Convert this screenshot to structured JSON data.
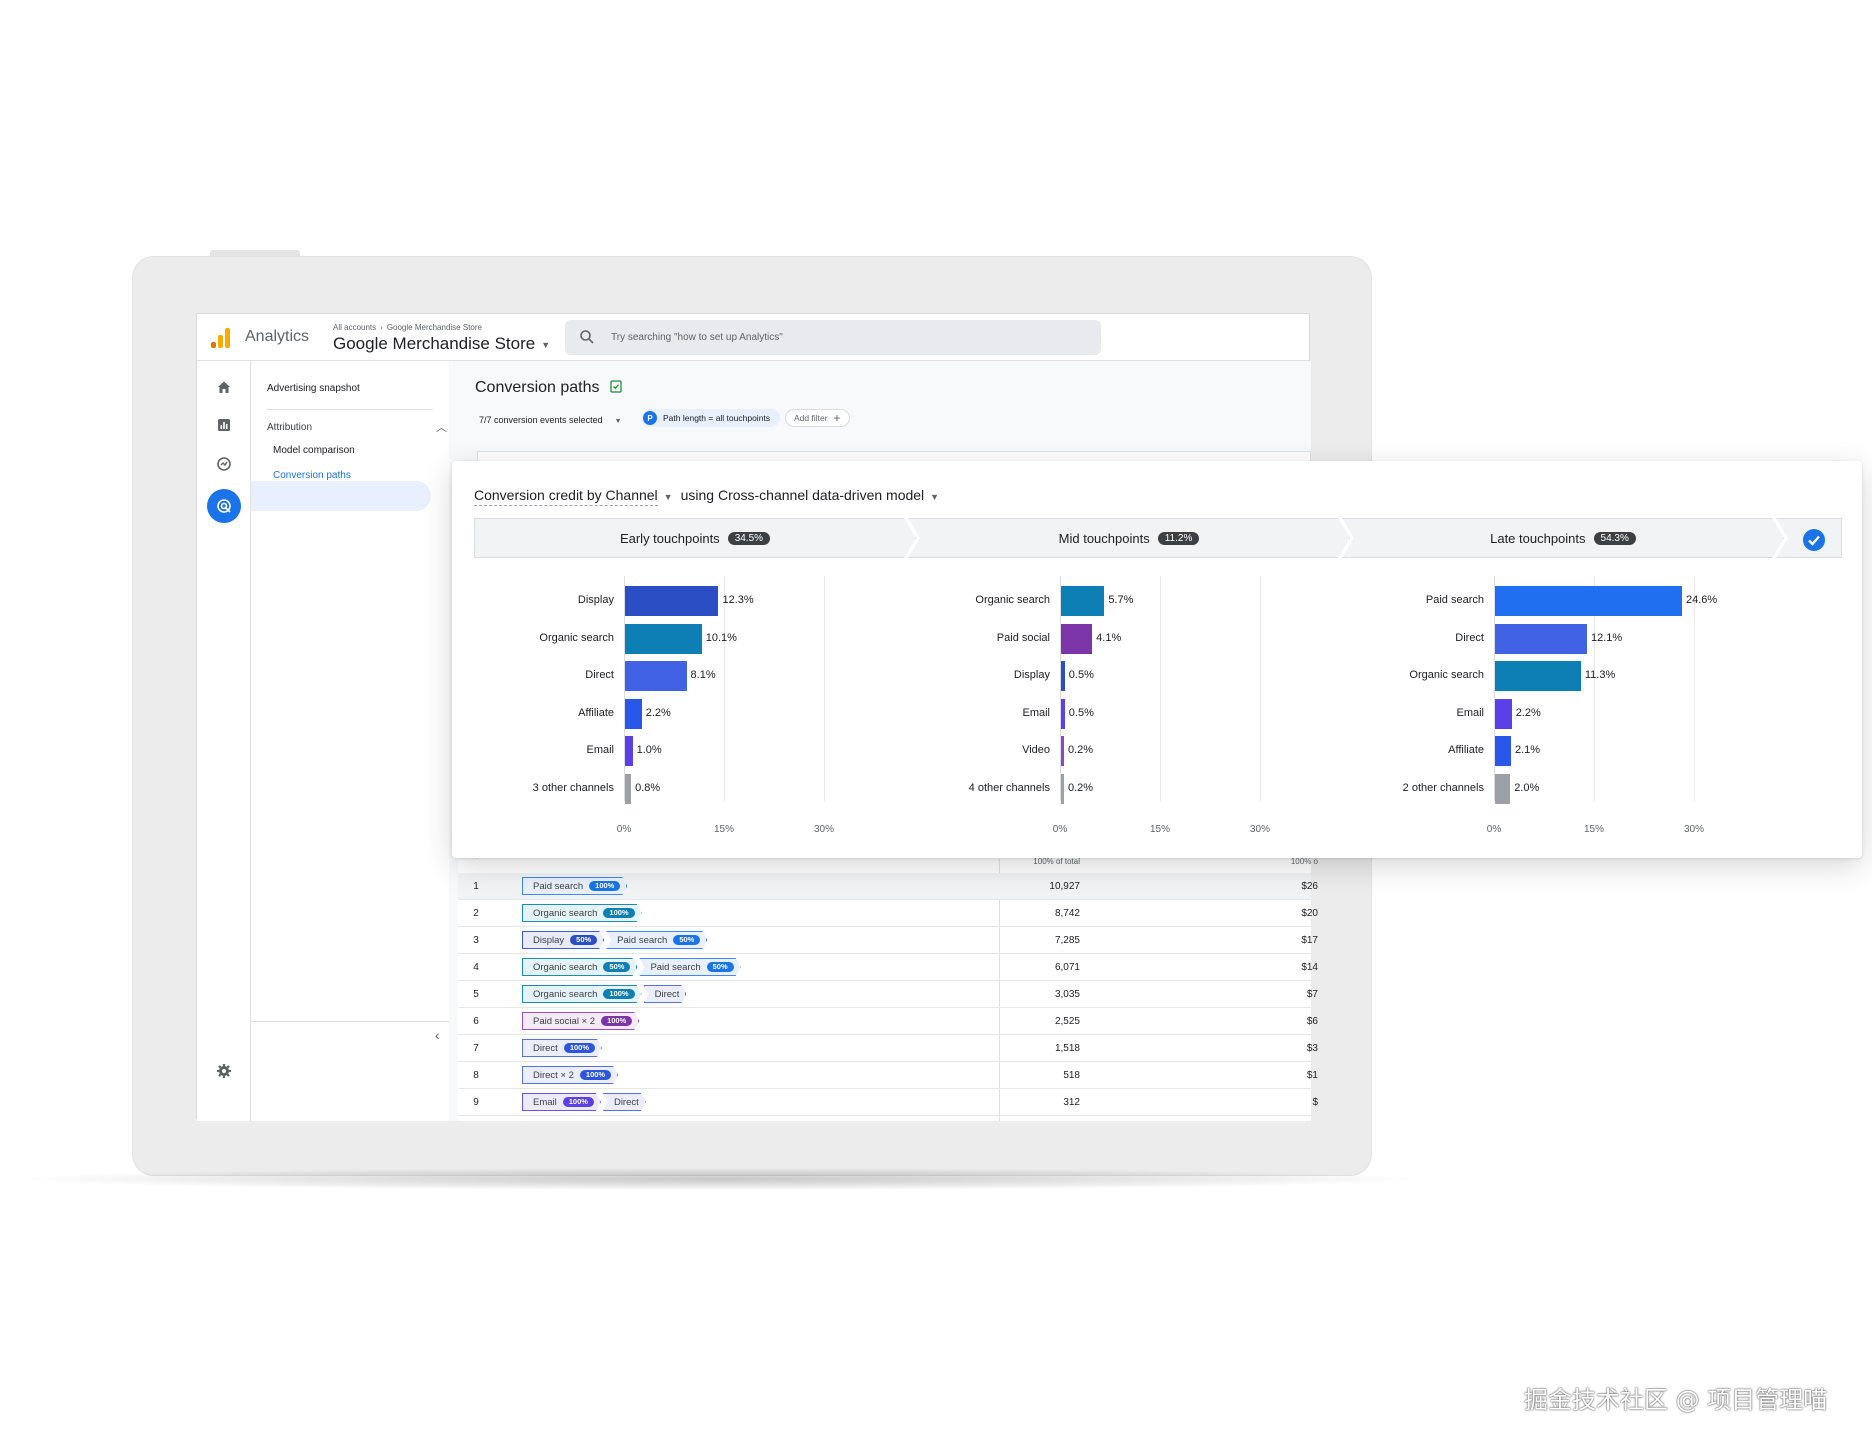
{
  "header": {
    "app_name": "Analytics",
    "breadcrumb": [
      "All accounts",
      "Google Merchandise Store"
    ],
    "property": "Google Merchandise Store",
    "search_placeholder": "Try searching \"how to set up Analytics\""
  },
  "nav": {
    "snapshot": "Advertising snapshot",
    "attribution": "Attribution",
    "model_comparison": "Model comparison",
    "conversion_paths": "Conversion paths"
  },
  "main": {
    "title": "Conversion paths",
    "events_selected": "7/7 conversion events selected",
    "filter_badge": "P",
    "filter_chip": "Path length = all touchpoints",
    "add_filter": "Add filter"
  },
  "card": {
    "heading_prefix": "Conversion credit by",
    "dimension": "Channel",
    "model": "using Cross-channel data-driven model",
    "stages": [
      {
        "label": "Early touchpoints",
        "share": "34.5%"
      },
      {
        "label": "Mid touchpoints",
        "share": "11.2%"
      },
      {
        "label": "Late touchpoints",
        "share": "54.3%"
      }
    ]
  },
  "chart_data": [
    {
      "type": "bar",
      "title": "Early touchpoints",
      "categories": [
        "Display",
        "Organic search",
        "Direct",
        "Affiliate",
        "Email",
        "3 other channels"
      ],
      "values": [
        12.3,
        10.1,
        8.1,
        2.2,
        1.0,
        0.8
      ],
      "labels": [
        "12.3%",
        "10.1%",
        "8.1%",
        "2.2%",
        "1.0%",
        "0.8%"
      ],
      "colors": [
        "#2b4ec4",
        "#0e7fb5",
        "#4262e6",
        "#2857ea",
        "#5a40e6",
        "#9aa0a6"
      ],
      "xlim": [
        0,
        30
      ],
      "ticks": [
        "0%",
        "15%",
        "30%"
      ]
    },
    {
      "type": "bar",
      "title": "Mid touchpoints",
      "categories": [
        "Organic search",
        "Paid social",
        "Display",
        "Email",
        "Video",
        "4 other channels"
      ],
      "values": [
        5.7,
        4.1,
        0.5,
        0.5,
        0.2,
        0.2
      ],
      "labels": [
        "5.7%",
        "4.1%",
        "0.5%",
        "0.5%",
        "0.2%",
        "0.2%"
      ],
      "colors": [
        "#0e7fb5",
        "#7b35a8",
        "#2b4ec4",
        "#5a40e6",
        "#8e44c9",
        "#9aa0a6"
      ],
      "xlim": [
        0,
        30
      ],
      "ticks": [
        "0%",
        "15%",
        "30%"
      ]
    },
    {
      "type": "bar",
      "title": "Late touchpoints",
      "categories": [
        "Paid search",
        "Direct",
        "Organic search",
        "Email",
        "Affiliate",
        "2 other channels"
      ],
      "values": [
        24.6,
        12.1,
        11.3,
        2.2,
        2.1,
        2.0
      ],
      "labels": [
        "24.6%",
        "12.1%",
        "11.3%",
        "2.2%",
        "2.1%",
        "2.0%"
      ],
      "colors": [
        "#1f6ff0",
        "#4262e6",
        "#0e7fb5",
        "#5a40e6",
        "#2857ea",
        "#9aa0a6"
      ],
      "xlim": [
        0,
        30
      ],
      "ticks": [
        "0%",
        "15%",
        "30%"
      ]
    }
  ],
  "table": {
    "header_total": "100% of total",
    "header_rev": "100% o",
    "rows": [
      {
        "n": "1",
        "path": [
          {
            "label": "Paid search",
            "pct": "100%"
          }
        ],
        "conv": "10,927",
        "rev": "$26"
      },
      {
        "n": "2",
        "path": [
          {
            "label": "Organic search",
            "pct": "100%"
          }
        ],
        "conv": "8,742",
        "rev": "$20"
      },
      {
        "n": "3",
        "path": [
          {
            "label": "Display",
            "pct": "50%"
          },
          {
            "label": "Paid search",
            "pct": "50%"
          }
        ],
        "conv": "7,285",
        "rev": "$17"
      },
      {
        "n": "4",
        "path": [
          {
            "label": "Organic search",
            "pct": "50%"
          },
          {
            "label": "Paid search",
            "pct": "50%"
          }
        ],
        "conv": "6,071",
        "rev": "$14"
      },
      {
        "n": "5",
        "path": [
          {
            "label": "Organic search",
            "pct": "100%"
          },
          {
            "label": "Direct",
            "pct": ""
          }
        ],
        "conv": "3,035",
        "rev": "$7"
      },
      {
        "n": "6",
        "path": [
          {
            "label": "Paid social × 2",
            "pct": "100%"
          }
        ],
        "conv": "2,525",
        "rev": "$6"
      },
      {
        "n": "7",
        "path": [
          {
            "label": "Direct",
            "pct": "100%"
          }
        ],
        "conv": "1,518",
        "rev": "$3"
      },
      {
        "n": "8",
        "path": [
          {
            "label": "Direct × 2",
            "pct": "100%"
          }
        ],
        "conv": "518",
        "rev": "$1"
      },
      {
        "n": "9",
        "path": [
          {
            "label": "Email",
            "pct": "100%"
          },
          {
            "label": "Direct",
            "pct": ""
          }
        ],
        "conv": "312",
        "rev": "$"
      }
    ]
  },
  "watermark": "掘金技术社区 @ 项目管理喵"
}
